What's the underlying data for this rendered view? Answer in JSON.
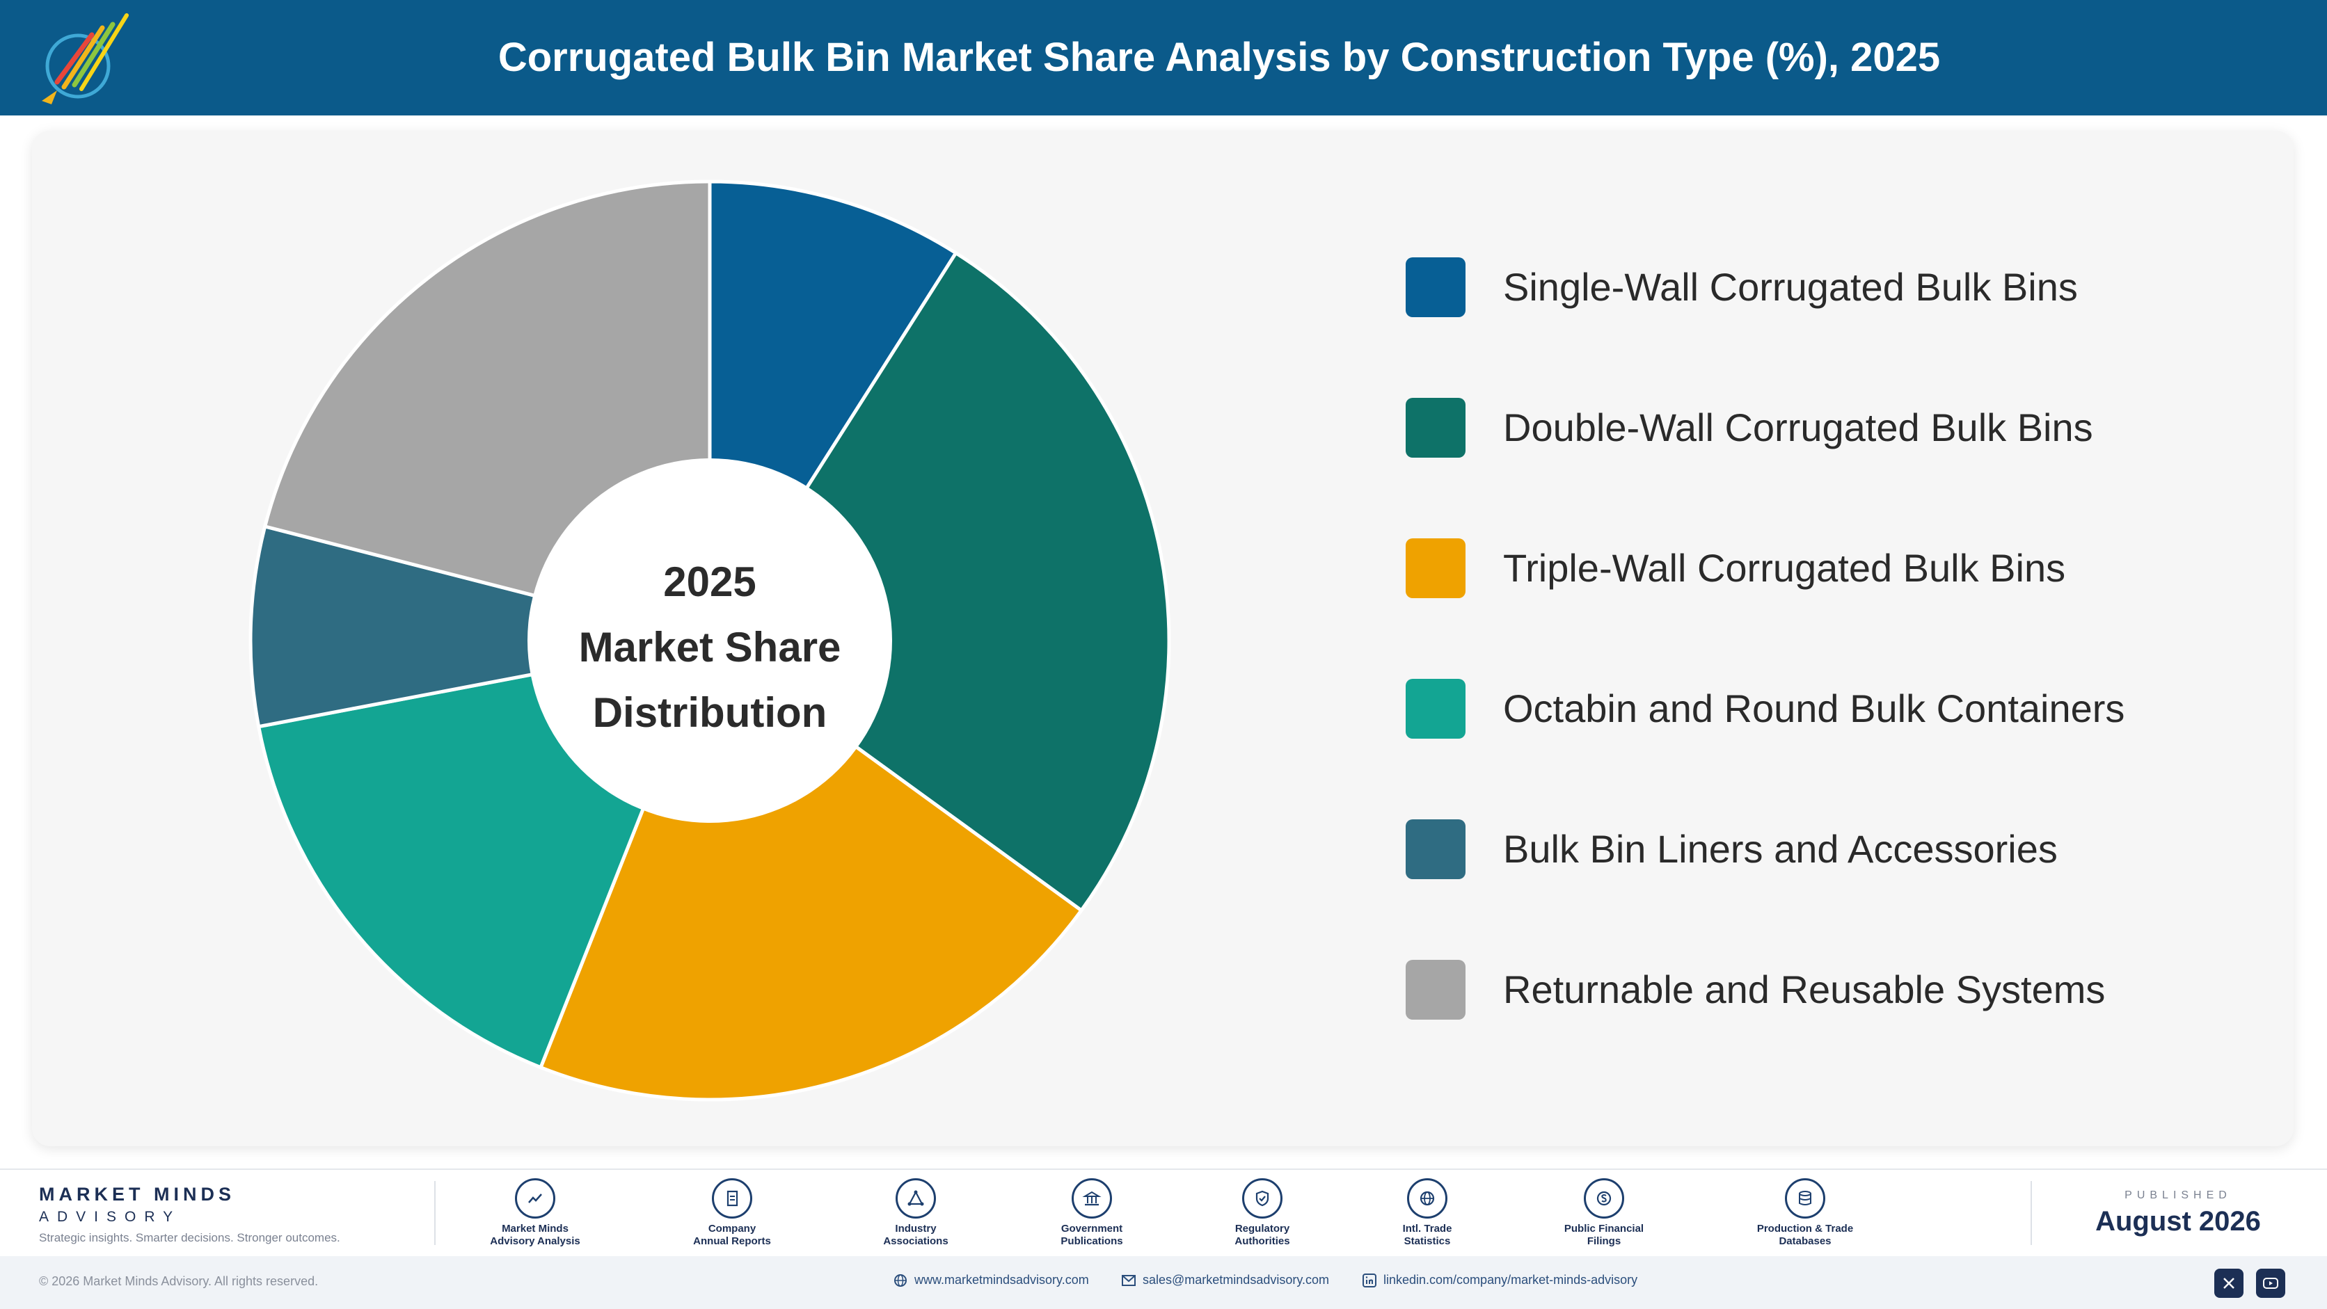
{
  "header": {
    "title": "Corrugated Bulk Bin Market Share Analysis by Construction Type (%), 2025"
  },
  "chart_data": {
    "type": "pie",
    "title": "Corrugated Bulk Bin Market Share Analysis by Construction Type (%), 2025",
    "center_label": [
      "2025",
      "Market Share",
      "Distribution"
    ],
    "legend_position": "right",
    "categories": [
      "Single-Wall Corrugated Bulk Bins",
      "Double-Wall Corrugated Bulk Bins",
      "Triple-Wall Corrugated Bulk Bins",
      "Octabin and Round Bulk Containers",
      "Bulk Bin Liners and Accessories",
      "Returnable and Reusable Systems"
    ],
    "values": [
      9,
      26,
      21,
      16,
      7,
      21
    ],
    "colors": [
      "#075f95",
      "#0e7268",
      "#efa200",
      "#13a593",
      "#2f6c82",
      "#a6a6a6"
    ]
  },
  "footer": {
    "brand_name": "MARKET MINDS",
    "brand_sub": "ADVISORY",
    "tagline": "Strategic insights. Smarter decisions. Stronger outcomes.",
    "sources": [
      {
        "icon": "chart-line-icon",
        "line1": "Market Minds",
        "line2": "Advisory Analysis"
      },
      {
        "icon": "document-icon",
        "line1": "Company",
        "line2": "Annual Reports"
      },
      {
        "icon": "network-icon",
        "line1": "Industry",
        "line2": "Associations"
      },
      {
        "icon": "government-building-icon",
        "line1": "Government",
        "line2": "Publications"
      },
      {
        "icon": "shield-check-icon",
        "line1": "Regulatory",
        "line2": "Authorities"
      },
      {
        "icon": "globe-icon",
        "line1": "Intl. Trade",
        "line2": "Statistics"
      },
      {
        "icon": "dollar-coin-icon",
        "line1": "Public Financial",
        "line2": "Filings"
      },
      {
        "icon": "database-icon",
        "line1": "Production & Trade",
        "line2": "Databases"
      }
    ],
    "published_label": "PUBLISHED",
    "published_date": "August 2026"
  },
  "bottom": {
    "copyright": "© 2026 Market Minds Advisory. All rights reserved.",
    "website": "www.marketmindsadvisory.com",
    "email": "sales@marketmindsadvisory.com",
    "linkedin": "linkedin.com/company/market-minds-advisory"
  }
}
